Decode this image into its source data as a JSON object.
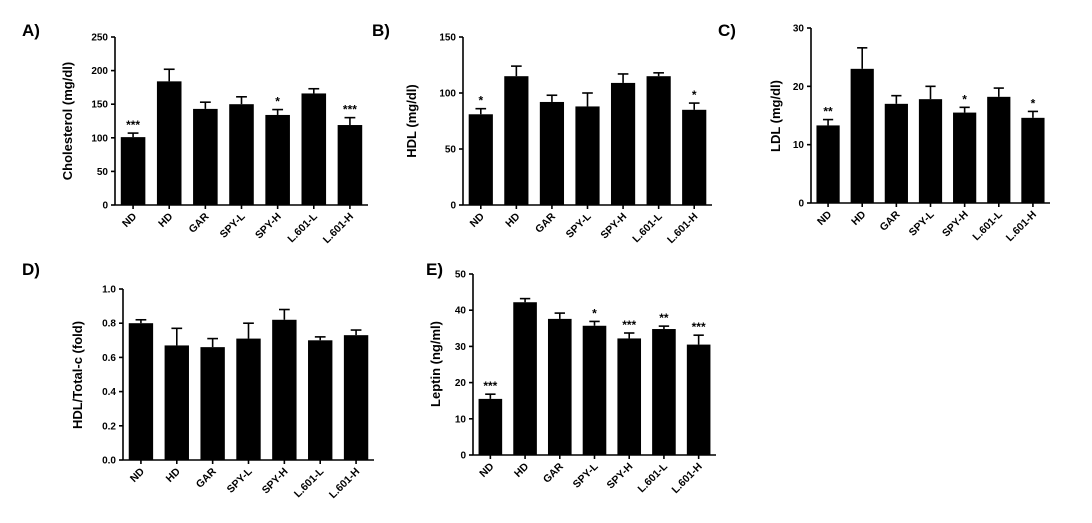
{
  "chart_data": [
    {
      "type": "bar",
      "panel": "A)",
      "ylabel": "Cholesterol (mg/dl)",
      "categories": [
        "ND",
        "HD",
        "GAR",
        "SPY-L",
        "SPY-H",
        "L.601-L",
        "L.601-H"
      ],
      "values": [
        101,
        184,
        143,
        150,
        134,
        166,
        119
      ],
      "errors": [
        6,
        18,
        10,
        11,
        8,
        7,
        11
      ],
      "significance": [
        "***",
        "",
        "",
        "",
        "*",
        "",
        "***"
      ],
      "ylim": [
        0,
        250
      ],
      "yticks": [
        "0",
        "50",
        "100",
        "150",
        "200",
        "250"
      ]
    },
    {
      "type": "bar",
      "panel": "B)",
      "ylabel": "HDL (mg/dl)",
      "categories": [
        "ND",
        "HD",
        "GAR",
        "SPY-L",
        "SPY-H",
        "L.601-L",
        "L.601-H"
      ],
      "values": [
        81,
        115,
        92,
        88,
        109,
        115,
        85
      ],
      "errors": [
        5,
        9,
        6,
        12,
        8,
        3,
        6
      ],
      "significance": [
        "*",
        "",
        "",
        "",
        "",
        "",
        "*"
      ],
      "ylim": [
        0,
        150
      ],
      "yticks": [
        "0",
        "50",
        "100",
        "150"
      ]
    },
    {
      "type": "bar",
      "panel": "C)",
      "ylabel": "LDL (mg/dl)",
      "categories": [
        "ND",
        "HD",
        "GAR",
        "SPY-L",
        "SPY-H",
        "L.601-L",
        "L.601-H"
      ],
      "values": [
        13.3,
        23,
        17,
        17.8,
        15.5,
        18.2,
        14.6
      ],
      "errors": [
        1,
        3.6,
        1.4,
        2.2,
        0.9,
        1.5,
        1.1
      ],
      "significance": [
        "**",
        "",
        "",
        "",
        "*",
        "",
        "*"
      ],
      "ylim": [
        0,
        30
      ],
      "yticks": [
        "0",
        "10",
        "20",
        "30"
      ]
    },
    {
      "type": "bar",
      "panel": "D)",
      "ylabel": "HDL/Total-c (fold)",
      "categories": [
        "ND",
        "HD",
        "GAR",
        "SPY-L",
        "SPY-H",
        "L.601-L",
        "L.601-H"
      ],
      "values": [
        0.8,
        0.67,
        0.66,
        0.71,
        0.82,
        0.7,
        0.73
      ],
      "errors": [
        0.02,
        0.1,
        0.05,
        0.09,
        0.06,
        0.02,
        0.03
      ],
      "significance": [
        "",
        "",
        "",
        "",
        "",
        "",
        ""
      ],
      "ylim": [
        0,
        1.0
      ],
      "yticks": [
        "0.0",
        "0.2",
        "0.4",
        "0.6",
        "0.8",
        "1.0"
      ]
    },
    {
      "type": "bar",
      "panel": "E)",
      "ylabel": "Leptin (ng/ml)",
      "categories": [
        "ND",
        "HD",
        "GAR",
        "SPY-L",
        "SPY-H",
        "L.601-L",
        "L.601-H"
      ],
      "values": [
        15.5,
        42.2,
        37.6,
        35.7,
        32.2,
        34.8,
        30.5
      ],
      "errors": [
        1.3,
        1,
        1.6,
        1.2,
        1.5,
        0.8,
        2.6
      ],
      "significance": [
        "***",
        "",
        "",
        "*",
        "***",
        "**",
        "***"
      ],
      "ylim": [
        0,
        50
      ],
      "yticks": [
        "0",
        "10",
        "20",
        "30",
        "40",
        "50"
      ]
    }
  ]
}
